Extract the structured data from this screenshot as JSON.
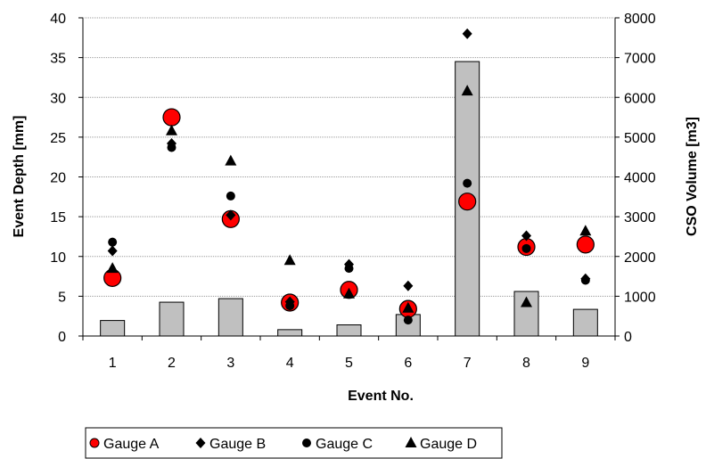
{
  "chart_data": {
    "type": "bar+scatter",
    "categories": [
      "1",
      "2",
      "3",
      "4",
      "5",
      "6",
      "7",
      "8",
      "9"
    ],
    "xlabel": "Event No.",
    "ylabel_left": "Event Depth [mm]",
    "ylabel_right": "CSO Volume [m3]",
    "ylim_left": [
      0,
      40
    ],
    "ylim_right": [
      0,
      8000
    ],
    "yticks_left": [
      "0",
      "5",
      "10",
      "15",
      "20",
      "25",
      "30",
      "35",
      "40"
    ],
    "yticks_right": [
      "0",
      "1000",
      "2000",
      "3000",
      "4000",
      "5000",
      "6000",
      "7000",
      "8000"
    ],
    "grid": true,
    "legend_position": "bottom",
    "bars": {
      "axis": "right",
      "color": "#c0c0c0",
      "values": [
        390,
        850,
        940,
        160,
        280,
        540,
        6900,
        1120,
        670
      ]
    },
    "series": [
      {
        "name": "Gauge A",
        "marker": "circle-large",
        "color": "#ff0000",
        "values": [
          7.3,
          27.5,
          14.7,
          4.2,
          5.8,
          3.4,
          16.9,
          11.2,
          11.5
        ]
      },
      {
        "name": "Gauge B",
        "marker": "diamond",
        "color": "#000000",
        "values": [
          10.7,
          24.2,
          15.2,
          4.3,
          9.0,
          6.3,
          38.0,
          12.6,
          7.2
        ]
      },
      {
        "name": "Gauge C",
        "marker": "circle",
        "color": "#000000",
        "values": [
          11.8,
          23.7,
          17.6,
          3.8,
          8.5,
          2.0,
          19.2,
          11.0,
          7.0
        ]
      },
      {
        "name": "Gauge D",
        "marker": "triangle",
        "color": "#000000",
        "values": [
          8.5,
          25.8,
          22.0,
          9.5,
          5.3,
          3.5,
          30.8,
          4.2,
          13.2
        ]
      }
    ]
  }
}
